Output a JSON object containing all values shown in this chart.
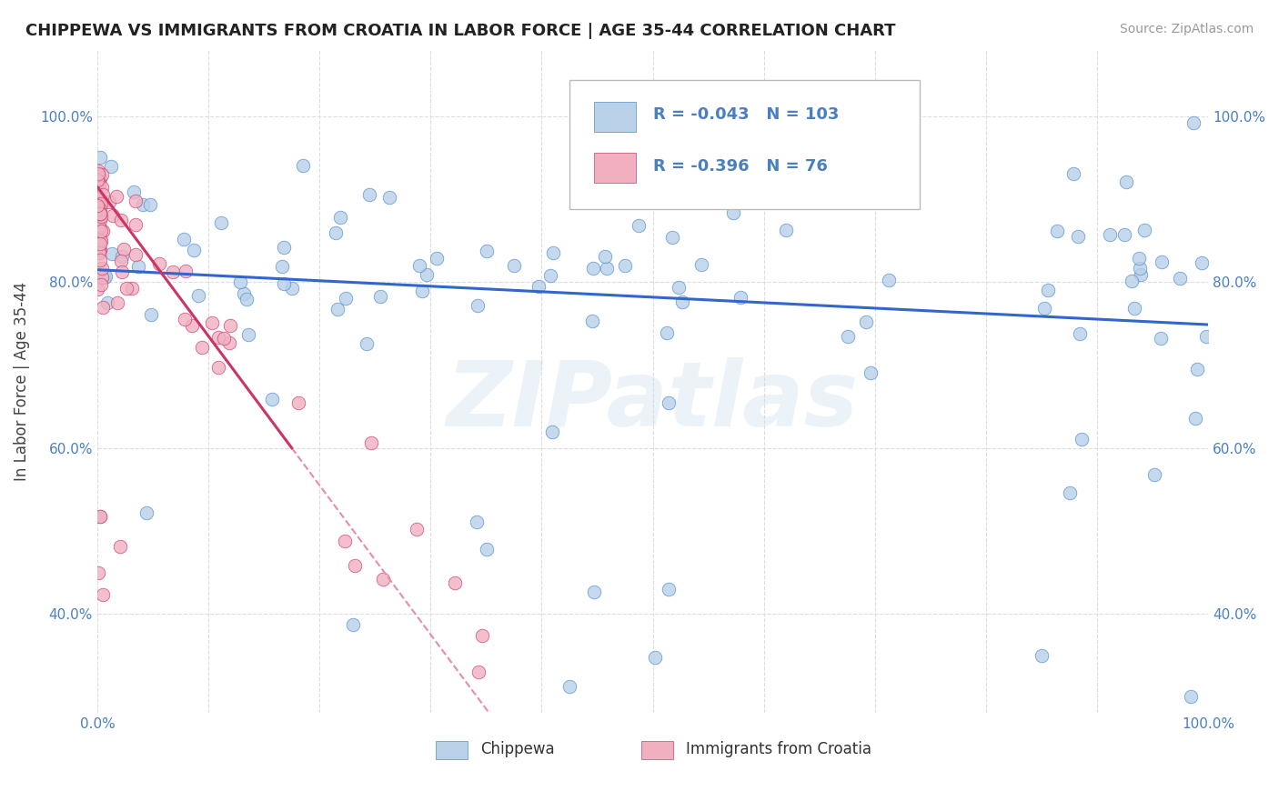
{
  "title": "CHIPPEWA VS IMMIGRANTS FROM CROATIA IN LABOR FORCE | AGE 35-44 CORRELATION CHART",
  "source": "Source: ZipAtlas.com",
  "ylabel": "In Labor Force | Age 35-44",
  "blue_R": -0.043,
  "blue_N": 103,
  "pink_R": -0.396,
  "pink_N": 76,
  "blue_color": "#b8d0e8",
  "pink_color": "#f0b0c0",
  "blue_edge_color": "#5090d0",
  "pink_edge_color": "#d04070",
  "blue_line_color": "#3366cc",
  "pink_line_color": "#cc3366",
  "dash_color": "#e090a8",
  "text_blue": "#4a7fc0",
  "background": "#ffffff",
  "grid_color": "#dddddd",
  "xlim": [
    0.0,
    1.0
  ],
  "ylim": [
    0.28,
    1.08
  ],
  "ytick_positions": [
    0.4,
    0.6,
    0.8,
    1.0
  ],
  "ytick_labels": [
    "40.0%",
    "60.0%",
    "80.0%",
    "100.0%"
  ],
  "watermark": "ZIPatlas"
}
